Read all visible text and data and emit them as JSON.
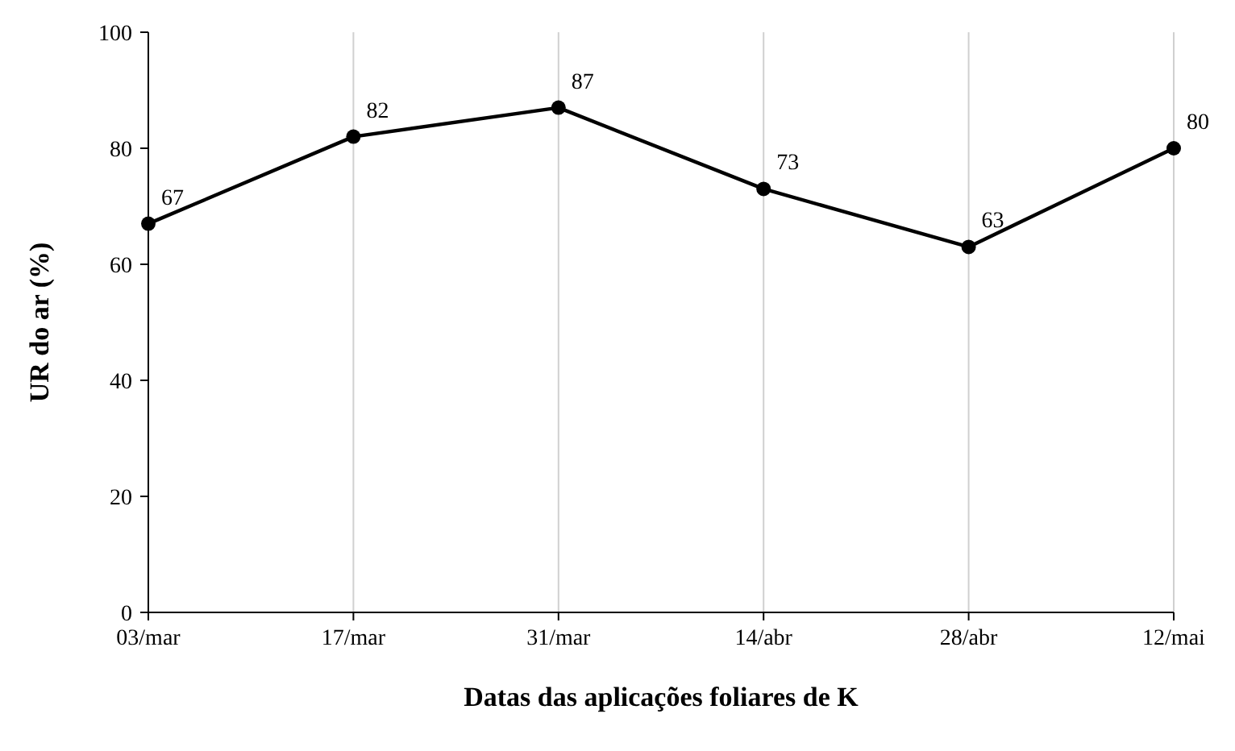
{
  "chart_data": {
    "type": "line",
    "xlabel": "Datas das aplicações foliares de K",
    "ylabel": "UR do ar (%)",
    "categories": [
      "03/mar",
      "17/mar",
      "31/mar",
      "14/abr",
      "28/abr",
      "12/mai"
    ],
    "series": [
      {
        "color": "#000000",
        "values": [
          67,
          82,
          87,
          73,
          63,
          80
        ]
      }
    ],
    "ylim": [
      0,
      100
    ],
    "yticks": [
      0,
      20,
      40,
      60,
      80,
      100
    ],
    "grid": "x",
    "marker": "circle",
    "line_style": "solid",
    "data_labels": true
  }
}
